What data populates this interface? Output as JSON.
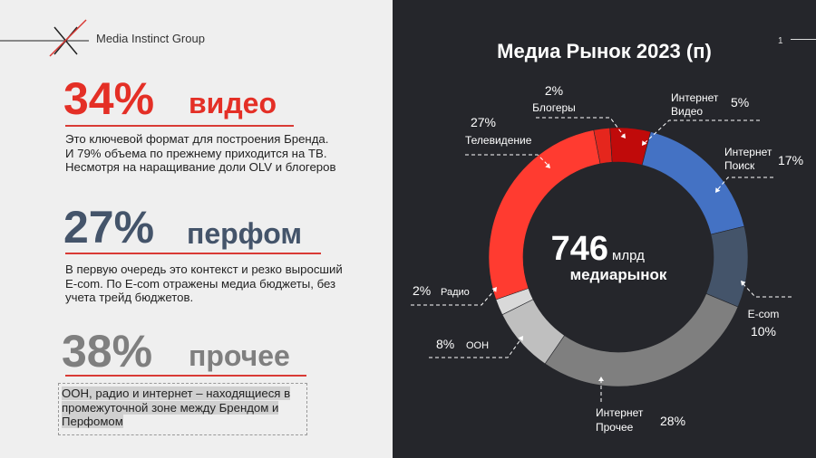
{
  "brand": "Media Instinct Group",
  "left": {
    "s1": {
      "percent": "34%",
      "word": "видео",
      "text": "Это ключевой формат для построения Бренда. И 79% объема по прежнему приходится на ТВ. Несмотря на наращивание доли OLV и блогеров"
    },
    "s2": {
      "percent": "27%",
      "word": "перфом",
      "text": "В первую очередь это контекст и резко выросший E-com. По E-com отражены медиа бюджеты, без учета трейд бюджетов."
    },
    "s3": {
      "percent": "38%",
      "word": "прочее",
      "text": "ООН, радио и интернет – находящиеся в промежуточной зоне между Брендом и Перфомом"
    }
  },
  "page_number": "1",
  "chart_data": {
    "type": "donut",
    "title": "Медиа Рынок 2023 (п)",
    "center": {
      "value": "746",
      "unit": "млрд",
      "label": "медиарынок"
    },
    "slices": [
      {
        "name": "Блогеры",
        "value": 2,
        "label": "2%",
        "color": "#e5261d"
      },
      {
        "name": "Интернет Видео",
        "value": 5,
        "label": "5%",
        "color": "#c00a0a"
      },
      {
        "name": "Интернет Поиск",
        "value": 17,
        "label": "17%",
        "color": "#4472c4"
      },
      {
        "name": "E-com",
        "value": 10,
        "label": "10%",
        "color": "#44546a"
      },
      {
        "name": "Интернет Прочее",
        "value": 28,
        "label": "28%",
        "color": "#7f7f7f"
      },
      {
        "name": "ООН",
        "value": 8,
        "label": "8%",
        "color": "#bfbfbf"
      },
      {
        "name": "Радио",
        "value": 2,
        "label": "2%",
        "color": "#d9d9d9"
      },
      {
        "name": "Телевидение",
        "value": 27,
        "label": "27%",
        "color": "#ff3b30"
      }
    ],
    "start_slice": "Блогеры"
  }
}
